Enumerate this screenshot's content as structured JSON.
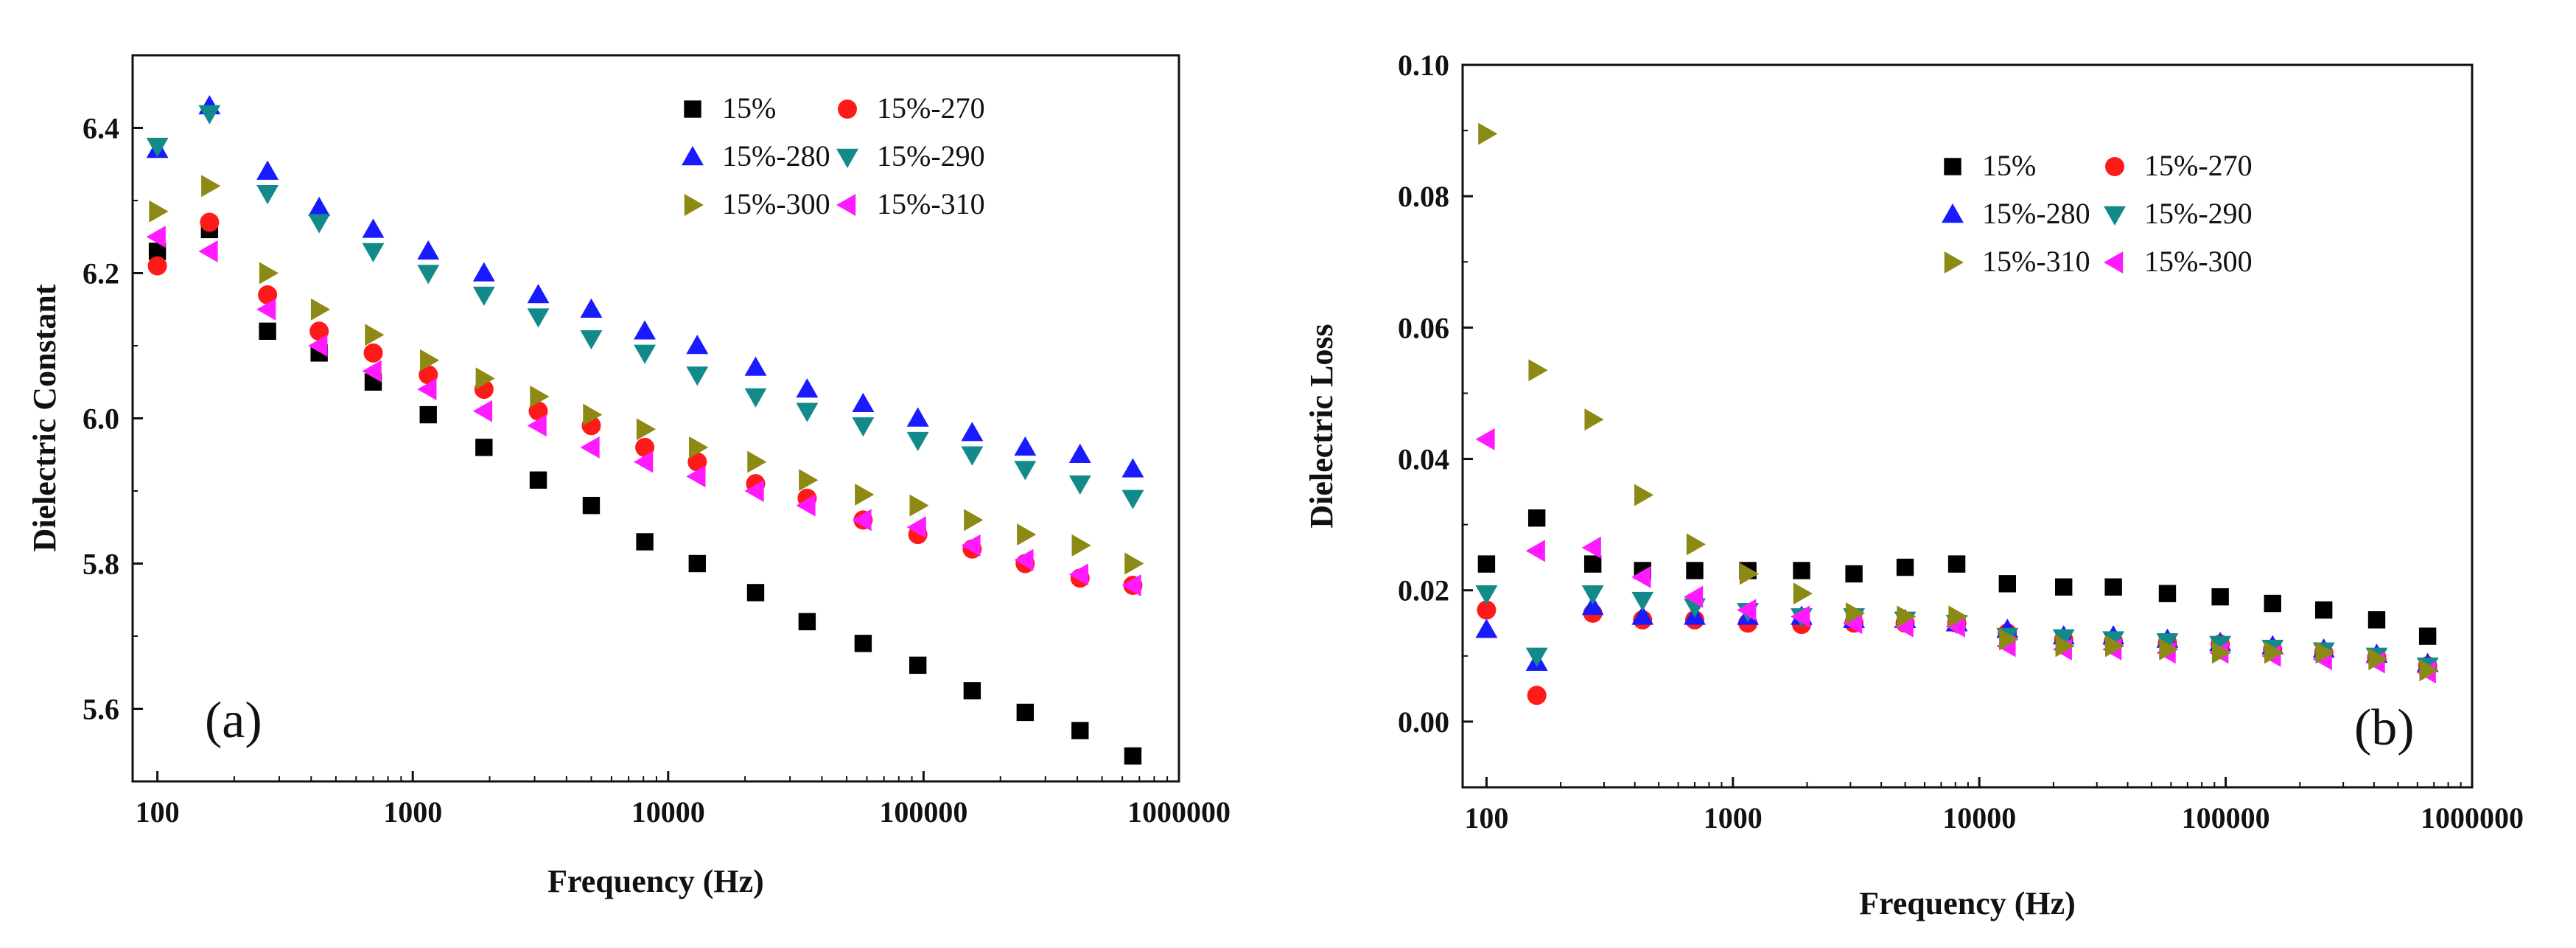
{
  "chart_data": [
    {
      "type": "scatter",
      "panel_label": "(a)",
      "xlabel": "Frequency (Hz)",
      "ylabel": "Dielectric Constant",
      "xscale": "log",
      "xlim": [
        80,
        1000000
      ],
      "ylim": [
        5.5,
        6.5
      ],
      "xticks": [
        100,
        1000,
        10000,
        100000,
        1000000
      ],
      "xtick_labels": [
        "100",
        "1000",
        "10000",
        "100000",
        "1000000"
      ],
      "yticks": [
        5.6,
        5.8,
        6.0,
        6.2,
        6.4
      ],
      "ytick_labels": [
        "5.6",
        "5.8",
        "6.0",
        "6.2",
        "6.4"
      ],
      "legend_position": "top-right",
      "legend_order": [
        0,
        1,
        2,
        3,
        4,
        5
      ],
      "x": [
        100,
        160,
        270,
        430,
        700,
        1150,
        1900,
        3100,
        5000,
        8100,
        13000,
        22000,
        35000,
        58000,
        95000,
        155000,
        250000,
        410000,
        660000
      ],
      "series": [
        {
          "name": "15%",
          "marker": "square",
          "color": "#000000",
          "values": [
            6.23,
            6.26,
            6.12,
            6.09,
            6.05,
            6.005,
            5.96,
            5.915,
            5.88,
            5.83,
            5.8,
            5.76,
            5.72,
            5.69,
            5.66,
            5.625,
            5.595,
            5.57,
            5.535
          ]
        },
        {
          "name": "15%-270",
          "marker": "circle",
          "color": "#ff1a1a",
          "values": [
            6.21,
            6.27,
            6.17,
            6.12,
            6.09,
            6.06,
            6.04,
            6.01,
            5.99,
            5.96,
            5.94,
            5.91,
            5.89,
            5.86,
            5.84,
            5.82,
            5.8,
            5.78,
            5.77
          ]
        },
        {
          "name": "15%-280",
          "marker": "triangle-up",
          "color": "#1a1aff",
          "values": [
            6.37,
            6.43,
            6.34,
            6.29,
            6.26,
            6.23,
            6.2,
            6.17,
            6.15,
            6.12,
            6.1,
            6.07,
            6.04,
            6.02,
            6.0,
            5.98,
            5.96,
            5.95,
            5.93
          ]
        },
        {
          "name": "15%-290",
          "marker": "triangle-down",
          "color": "#138a8a",
          "values": [
            6.375,
            6.42,
            6.31,
            6.27,
            6.23,
            6.2,
            6.17,
            6.14,
            6.11,
            6.09,
            6.06,
            6.03,
            6.01,
            5.99,
            5.97,
            5.95,
            5.93,
            5.91,
            5.89
          ]
        },
        {
          "name": "15%-300",
          "marker": "triangle-right",
          "color": "#8c8a14",
          "values": [
            6.285,
            6.32,
            6.2,
            6.15,
            6.115,
            6.08,
            6.055,
            6.03,
            6.005,
            5.985,
            5.96,
            5.94,
            5.915,
            5.895,
            5.88,
            5.86,
            5.84,
            5.825,
            5.8
          ]
        },
        {
          "name": "15%-310",
          "marker": "triangle-left",
          "color": "#ff1aff",
          "values": [
            6.25,
            6.23,
            6.15,
            6.1,
            6.065,
            6.04,
            6.01,
            5.99,
            5.96,
            5.94,
            5.92,
            5.9,
            5.88,
            5.86,
            5.85,
            5.825,
            5.805,
            5.785,
            5.77
          ]
        }
      ]
    },
    {
      "type": "scatter",
      "panel_label": "(b)",
      "xlabel": "Frequency (Hz)",
      "ylabel": "Dielectric Loss",
      "xscale": "log",
      "xlim": [
        80,
        1000000
      ],
      "ylim": [
        -0.01,
        0.1
      ],
      "xticks": [
        100,
        1000,
        10000,
        100000,
        1000000
      ],
      "xtick_labels": [
        "100",
        "1000",
        "10000",
        "100000",
        "1000000"
      ],
      "yticks": [
        0.0,
        0.02,
        0.04,
        0.06,
        0.08,
        0.1
      ],
      "ytick_labels": [
        "0.00",
        "0.02",
        "0.04",
        "0.06",
        "0.08",
        "0.10"
      ],
      "legend_position": "top-right",
      "legend_order": [
        0,
        1,
        2,
        3,
        5,
        4
      ],
      "x": [
        100,
        160,
        270,
        430,
        700,
        1150,
        1900,
        3100,
        5000,
        8100,
        13000,
        22000,
        35000,
        58000,
        95000,
        155000,
        250000,
        410000,
        660000
      ],
      "series": [
        {
          "name": "15%",
          "marker": "square",
          "color": "#000000",
          "values": [
            0.024,
            0.031,
            0.024,
            0.023,
            0.023,
            0.023,
            0.023,
            0.0225,
            0.0235,
            0.024,
            0.021,
            0.0205,
            0.0205,
            0.0195,
            0.019,
            0.018,
            0.017,
            0.0155,
            0.013
          ]
        },
        {
          "name": "15%-270",
          "marker": "circle",
          "color": "#ff1a1a",
          "values": [
            0.017,
            0.004,
            0.0165,
            0.0155,
            0.0155,
            0.015,
            0.0148,
            0.015,
            0.015,
            0.015,
            0.0135,
            0.0125,
            0.0122,
            0.012,
            0.0118,
            0.011,
            0.0105,
            0.0098,
            0.0085
          ]
        },
        {
          "name": "15%-280",
          "marker": "triangle-up",
          "color": "#1a1aff",
          "values": [
            0.014,
            0.009,
            0.0175,
            0.016,
            0.016,
            0.016,
            0.016,
            0.0155,
            0.0155,
            0.015,
            0.014,
            0.013,
            0.013,
            0.0125,
            0.012,
            0.0115,
            0.011,
            0.0102,
            0.0088
          ]
        },
        {
          "name": "15%-290",
          "marker": "triangle-down",
          "color": "#138a8a",
          "values": [
            0.0195,
            0.01,
            0.0195,
            0.0185,
            0.0175,
            0.0168,
            0.016,
            0.016,
            0.0155,
            0.015,
            0.013,
            0.0128,
            0.0125,
            0.0122,
            0.0118,
            0.0112,
            0.0108,
            0.01,
            0.0085
          ]
        },
        {
          "name": "15%-300",
          "marker": "triangle-left",
          "color": "#ff1aff",
          "values": [
            0.043,
            0.026,
            0.0265,
            0.022,
            0.019,
            0.017,
            0.016,
            0.015,
            0.0145,
            0.0145,
            0.0115,
            0.011,
            0.011,
            0.0105,
            0.0105,
            0.01,
            0.0095,
            0.009,
            0.0075
          ]
        },
        {
          "name": "15%-310",
          "marker": "triangle-right",
          "color": "#8c8a14",
          "values": [
            0.0895,
            0.0535,
            0.046,
            0.0345,
            0.027,
            0.0225,
            0.0195,
            0.0165,
            0.016,
            0.016,
            0.0125,
            0.0115,
            0.0115,
            0.011,
            0.0105,
            0.0105,
            0.0105,
            0.0095,
            0.0078
          ]
        }
      ]
    }
  ]
}
